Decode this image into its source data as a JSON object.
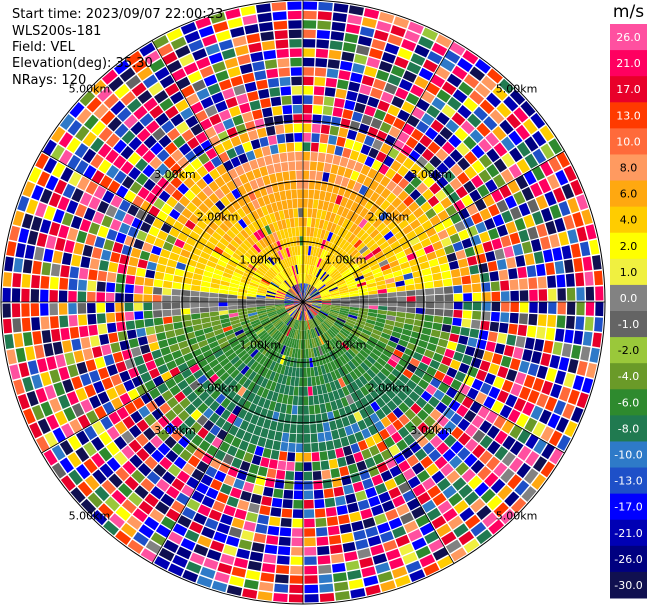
{
  "header": {
    "start_time": "Start time: 2023/09/07 22:00:23",
    "instrument": "WLS200s-181",
    "field": "Field: VEL",
    "elevation": "Elevation(deg): 35.30",
    "nrays": "NRays: 120"
  },
  "chart_data": {
    "type": "heatmap",
    "subtype": "ppi-polar",
    "field": "VEL",
    "nrays": 120,
    "max_range_km": 5.0,
    "range_rings_km": [
      1.0,
      2.0,
      3.0,
      5.0
    ],
    "ring_labels": [
      "1.00km",
      "2.00km",
      "3.00km",
      "5.00km"
    ],
    "spokes_deg": [
      0,
      30,
      60,
      90,
      120,
      150,
      180,
      210,
      240,
      270,
      300,
      330
    ],
    "description_regions": [
      {
        "azimuth_range_deg": [
          -85,
          85
        ],
        "range_km": [
          0,
          2.5
        ],
        "velocity_ms": [
          4,
          10
        ]
      },
      {
        "azimuth_range_deg": [
          95,
          265
        ],
        "range_km": [
          0,
          2.5
        ],
        "velocity_ms": [
          -10,
          -2
        ]
      },
      {
        "azimuth_range_deg": [
          0,
          360
        ],
        "range_km": [
          2.5,
          5.0
        ],
        "velocity_ms": "noise"
      }
    ],
    "colorbar": {
      "unit": "m/s",
      "ticks": [
        "26.0",
        "21.0",
        "17.0",
        "13.0",
        "10.0",
        "8.0",
        "6.0",
        "4.0",
        "2.0",
        "1.0",
        "0.0",
        "-1.0",
        "-2.0",
        "-4.0",
        "-6.0",
        "-8.0",
        "-10.0",
        "-13.0",
        "-17.0",
        "-21.0",
        "-26.0",
        "-30.0"
      ],
      "colors": [
        "#ff50a0",
        "#ff0060",
        "#e8002a",
        "#ff3a00",
        "#ff6a3a",
        "#ff9a60",
        "#ffa810",
        "#ffcc00",
        "#ffff00",
        "#f0f040",
        "#828282",
        "#646464",
        "#9ac83a",
        "#6a9a28",
        "#2e8a2e",
        "#207a50",
        "#2e7ac8",
        "#1e50c8",
        "#0000ff",
        "#0000b4",
        "#000080",
        "#101050"
      ]
    }
  }
}
